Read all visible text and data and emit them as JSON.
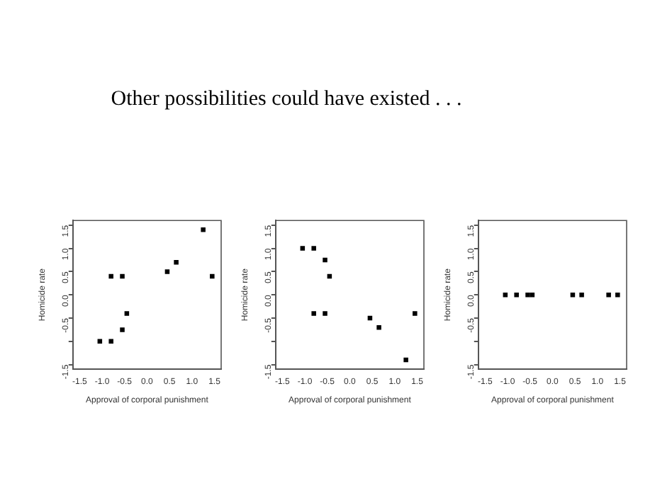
{
  "chart_data": [
    {
      "type": "scatter",
      "title": "Other possibilities could have existed . . .",
      "xlabel": "Approval of corporal punishment",
      "ylabel": "Homicide rate",
      "marker": "square",
      "x": [
        -1.05,
        -0.8,
        -0.8,
        -0.55,
        -0.55,
        -0.45,
        0.45,
        0.65,
        1.25,
        1.45
      ],
      "values": [
        -1.0,
        -1.0,
        0.4,
        0.4,
        -0.75,
        -0.4,
        0.5,
        0.7,
        1.4,
        0.4
      ],
      "xlim": [
        -1.65,
        1.65
      ],
      "ylim": [
        -1.6,
        1.6
      ],
      "xticks": [
        {
          "value": -1.5,
          "label": "-1.5"
        },
        {
          "value": -1.0,
          "label": "-1.0"
        },
        {
          "value": -0.5,
          "label": "-0.5"
        },
        {
          "value": 0,
          "label": "0.0"
        },
        {
          "value": 0.5,
          "label": "0.5"
        },
        {
          "value": 1.0,
          "label": "1.0"
        },
        {
          "value": 1.5,
          "label": "1.5"
        }
      ],
      "yticks": [
        {
          "value": -1.5,
          "label": "-1.5"
        },
        {
          "value": -1.0,
          "label": null
        },
        {
          "value": -0.5,
          "label": "-0.5"
        },
        {
          "value": 0,
          "label": "0.0"
        },
        {
          "value": 0.5,
          "label": "0.5"
        },
        {
          "value": 1.0,
          "label": "1.0"
        },
        {
          "value": 1.5,
          "label": "1.5"
        }
      ]
    },
    {
      "type": "scatter",
      "xlabel": "Approval of corporal punishment",
      "ylabel": "Homicide rate",
      "marker": "square",
      "x": [
        -1.05,
        -0.8,
        -0.55,
        -0.45,
        -0.8,
        -0.55,
        0.45,
        0.65,
        1.25,
        1.45
      ],
      "values": [
        1.0,
        1.0,
        0.75,
        0.4,
        -0.4,
        -0.4,
        -0.5,
        -0.7,
        -1.4,
        -0.4
      ],
      "xlim": [
        -1.65,
        1.65
      ],
      "ylim": [
        -1.6,
        1.6
      ],
      "xticks": [
        {
          "value": -1.5,
          "label": "-1.5"
        },
        {
          "value": -1.0,
          "label": "-1.0"
        },
        {
          "value": -0.5,
          "label": "-0.5"
        },
        {
          "value": 0,
          "label": "0.0"
        },
        {
          "value": 0.5,
          "label": "0.5"
        },
        {
          "value": 1.0,
          "label": "1.0"
        },
        {
          "value": 1.5,
          "label": "1.5"
        }
      ],
      "yticks": [
        {
          "value": -1.5,
          "label": "-1.5"
        },
        {
          "value": -1.0,
          "label": null
        },
        {
          "value": -0.5,
          "label": "-0.5"
        },
        {
          "value": 0,
          "label": "0.0"
        },
        {
          "value": 0.5,
          "label": "0.5"
        },
        {
          "value": 1.0,
          "label": "1.0"
        },
        {
          "value": 1.5,
          "label": "1.5"
        }
      ]
    },
    {
      "type": "scatter",
      "xlabel": "Approval of corporal punishment",
      "ylabel": "Homicide rate",
      "marker": "square",
      "x": [
        -1.05,
        -0.8,
        -0.55,
        -0.45,
        0.45,
        0.65,
        1.25,
        1.45
      ],
      "values": [
        0,
        0,
        0,
        0,
        0,
        0,
        0,
        0
      ],
      "xlim": [
        -1.65,
        1.65
      ],
      "ylim": [
        -1.6,
        1.6
      ],
      "xticks": [
        {
          "value": -1.5,
          "label": "-1.5"
        },
        {
          "value": -1.0,
          "label": "-1.0"
        },
        {
          "value": -0.5,
          "label": "-0.5"
        },
        {
          "value": 0,
          "label": "0.0"
        },
        {
          "value": 0.5,
          "label": "0.5"
        },
        {
          "value": 1.0,
          "label": "1.0"
        },
        {
          "value": 1.5,
          "label": "1.5"
        }
      ],
      "yticks": [
        {
          "value": -1.5,
          "label": "-1.5"
        },
        {
          "value": -1.0,
          "label": null
        },
        {
          "value": -0.5,
          "label": "-0.5"
        },
        {
          "value": 0,
          "label": "0.0"
        },
        {
          "value": 0.5,
          "label": "0.5"
        },
        {
          "value": 1.0,
          "label": "1.0"
        },
        {
          "value": 1.5,
          "label": "1.5"
        }
      ]
    }
  ]
}
